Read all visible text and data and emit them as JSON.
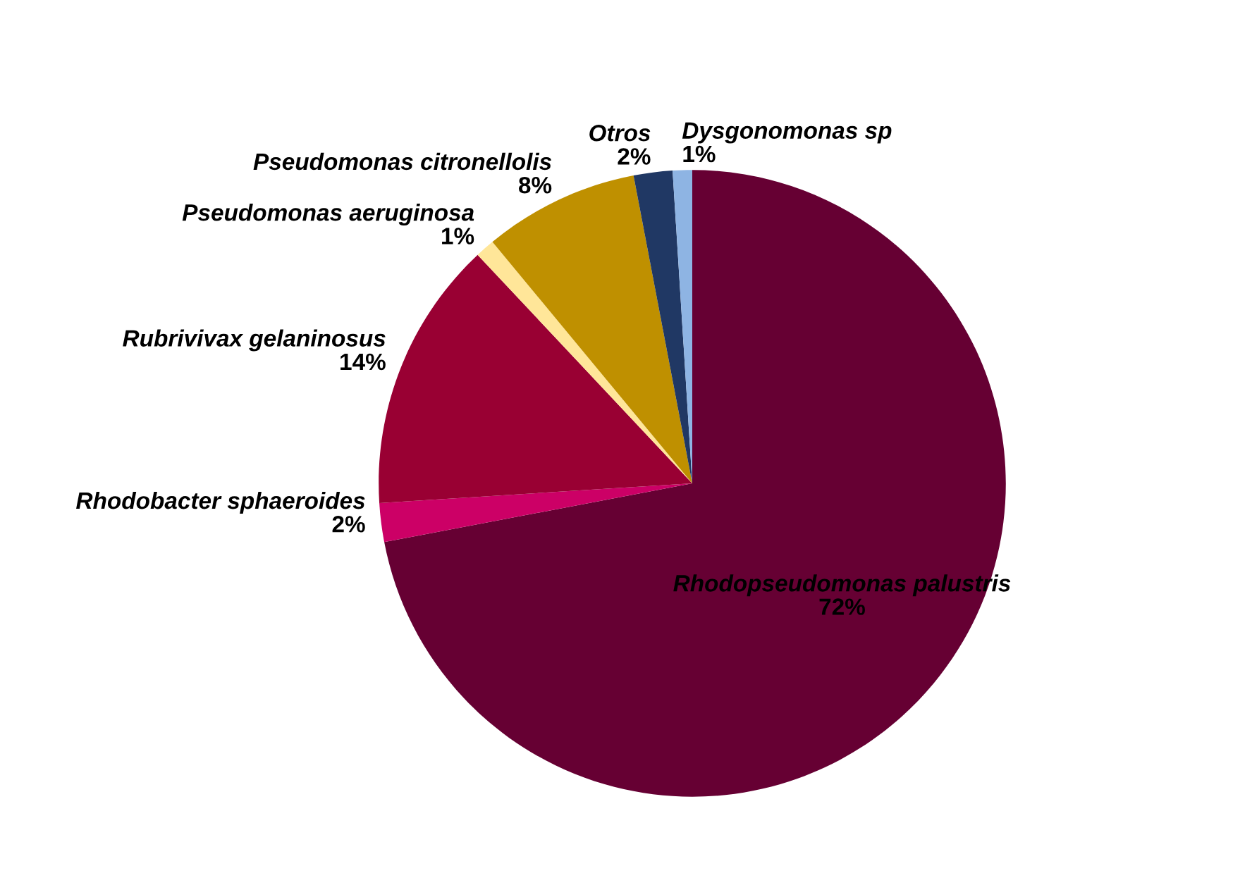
{
  "chart_data": {
    "type": "pie",
    "categories": [
      "Rhodopseudomonas palustris",
      "Rhodobacter sphaeroides",
      "Rubrivivax gelaninosus",
      "Pseudomonas aeruginosa",
      "Pseudomonas citronellolis",
      "Otros",
      "Dysgonomonas sp"
    ],
    "values": [
      72,
      2,
      14,
      1,
      8,
      2,
      1
    ],
    "colors": [
      "#660033",
      "#cc0066",
      "#990033",
      "#ffe699",
      "#bf9000",
      "#203864",
      "#8eb4e3"
    ],
    "value_labels": [
      "72%",
      "2%",
      "14%",
      "1%",
      "8%",
      "2%",
      "1%"
    ],
    "legend": false
  }
}
